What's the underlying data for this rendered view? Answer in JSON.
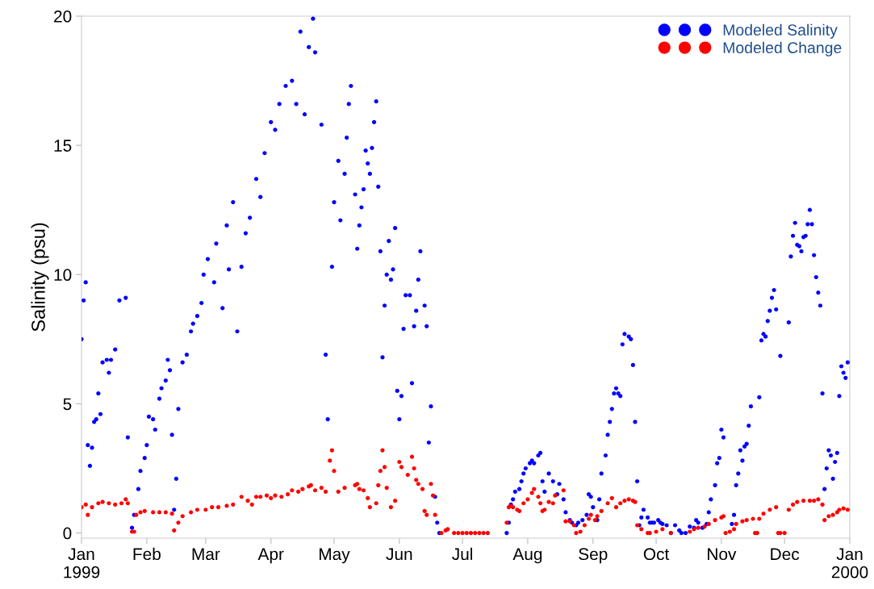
{
  "chart_data": {
    "type": "scatter",
    "ylabel": "Salinity (psu)",
    "xlim": [
      "1999-01-01",
      "2000-01-01"
    ],
    "xticks": [
      {
        "value": "1999-01-01",
        "label": "Jan\n1999"
      },
      {
        "value": "1999-02-01",
        "label": "Feb"
      },
      {
        "value": "1999-03-01",
        "label": "Mar"
      },
      {
        "value": "1999-04-01",
        "label": "Apr"
      },
      {
        "value": "1999-05-01",
        "label": "May"
      },
      {
        "value": "1999-06-01",
        "label": "Jun"
      },
      {
        "value": "1999-07-01",
        "label": "Jul"
      },
      {
        "value": "1999-08-01",
        "label": "Aug"
      },
      {
        "value": "1999-09-01",
        "label": "Sep"
      },
      {
        "value": "1999-10-01",
        "label": "Oct"
      },
      {
        "value": "1999-11-01",
        "label": "Nov"
      },
      {
        "value": "1999-12-01",
        "label": "Dec"
      },
      {
        "value": "2000-01-01",
        "label": "Jan\n2000"
      }
    ],
    "ylim": [
      -0.2,
      20
    ],
    "yticks": [
      0,
      5,
      10,
      15,
      20
    ],
    "grid": false,
    "legend": "top right",
    "marker": "circle",
    "series": [
      {
        "name": "Modeled Salinity",
        "color": "#0000ff",
        "x": [
          "1999-01-01",
          "1999-01-02",
          "1999-01-03",
          "1999-01-04",
          "1999-01-05",
          "1999-01-06",
          "1999-01-07",
          "1999-01-08",
          "1999-01-09",
          "1999-01-10",
          "1999-01-11",
          "1999-01-13",
          "1999-01-14",
          "1999-01-15",
          "1999-01-17",
          "1999-01-19",
          "1999-01-22",
          "1999-01-23",
          "1999-01-25",
          "1999-01-26",
          "1999-01-28",
          "1999-01-29",
          "1999-01-31",
          "1999-02-01",
          "1999-02-02",
          "1999-02-04",
          "1999-02-05",
          "1999-02-07",
          "1999-02-08",
          "1999-02-10",
          "1999-02-11",
          "1999-02-12",
          "1999-02-13",
          "1999-02-14",
          "1999-02-15",
          "1999-02-16",
          "1999-02-18",
          "1999-02-20",
          "1999-02-22",
          "1999-02-23",
          "1999-02-25",
          "1999-02-27",
          "1999-02-28",
          "1999-03-02",
          "1999-03-05",
          "1999-03-06",
          "1999-03-09",
          "1999-03-11",
          "1999-03-12",
          "1999-03-14",
          "1999-03-16",
          "1999-03-18",
          "1999-03-20",
          "1999-03-22",
          "1999-03-25",
          "1999-03-27",
          "1999-03-29",
          "1999-04-01",
          "1999-04-03",
          "1999-04-05",
          "1999-04-08",
          "1999-04-11",
          "1999-04-13",
          "1999-04-15",
          "1999-04-17",
          "1999-04-19",
          "1999-04-21",
          "1999-04-22",
          "1999-04-25",
          "1999-04-27",
          "1999-04-28",
          "1999-04-30",
          "1999-05-01",
          "1999-05-03",
          "1999-05-04",
          "1999-05-06",
          "1999-05-07",
          "1999-05-08",
          "1999-05-09",
          "1999-05-11",
          "1999-05-12",
          "1999-05-13",
          "1999-05-14",
          "1999-05-15",
          "1999-05-16",
          "1999-05-17",
          "1999-05-18",
          "1999-05-19",
          "1999-05-20",
          "1999-05-21",
          "1999-05-22",
          "1999-05-23",
          "1999-05-24",
          "1999-05-25",
          "1999-05-26",
          "1999-05-27",
          "1999-05-28",
          "1999-05-29",
          "1999-05-30",
          "1999-05-31",
          "1999-06-01",
          "1999-06-02",
          "1999-06-03",
          "1999-06-04",
          "1999-06-06",
          "1999-06-07",
          "1999-06-08",
          "1999-06-09",
          "1999-06-10",
          "1999-06-11",
          "1999-06-13",
          "1999-06-14",
          "1999-06-15",
          "1999-06-16",
          "1999-06-18",
          "1999-06-19",
          "1999-06-20",
          "1999-07-22",
          "1999-07-23",
          "1999-07-24",
          "1999-07-25",
          "1999-07-26",
          "1999-07-28",
          "1999-07-29",
          "1999-07-30",
          "1999-07-31",
          "1999-08-02",
          "1999-08-03",
          "1999-08-04",
          "1999-08-06",
          "1999-08-07",
          "1999-08-08",
          "1999-08-09",
          "1999-08-11",
          "1999-08-13",
          "1999-08-15",
          "1999-08-16",
          "1999-08-18",
          "1999-08-19",
          "1999-08-21",
          "1999-08-22",
          "1999-08-24",
          "1999-08-25",
          "1999-08-27",
          "1999-08-29",
          "1999-08-30",
          "1999-08-31",
          "1999-09-01",
          "1999-09-03",
          "1999-09-04",
          "1999-09-05",
          "1999-09-07",
          "1999-09-08",
          "1999-09-09",
          "1999-09-10",
          "1999-09-11",
          "1999-09-12",
          "1999-09-13",
          "1999-09-14",
          "1999-09-15",
          "1999-09-16",
          "1999-09-18",
          "1999-09-19",
          "1999-09-20",
          "1999-09-21",
          "1999-09-22",
          "1999-09-23",
          "1999-09-24",
          "1999-09-25",
          "1999-09-27",
          "1999-09-28",
          "1999-09-29",
          "1999-09-30",
          "1999-10-02",
          "1999-10-03",
          "1999-10-04",
          "1999-10-06",
          "1999-10-08",
          "1999-10-10",
          "1999-10-12",
          "1999-10-13",
          "1999-10-15",
          "1999-10-17",
          "1999-10-19",
          "1999-10-20",
          "1999-10-21",
          "1999-10-23",
          "1999-10-25",
          "1999-10-26",
          "1999-10-27",
          "1999-10-29",
          "1999-10-30",
          "1999-10-31",
          "1999-11-01",
          "1999-11-02",
          "1999-11-06",
          "1999-11-07",
          "1999-11-08",
          "1999-11-09",
          "1999-11-10",
          "1999-11-11",
          "1999-11-12",
          "1999-11-13",
          "1999-11-14",
          "1999-11-15",
          "1999-11-19",
          "1999-11-20",
          "1999-11-21",
          "1999-11-22",
          "1999-11-23",
          "1999-11-24",
          "1999-11-25",
          "1999-11-26",
          "1999-11-27",
          "1999-11-29",
          "1999-12-03",
          "1999-12-04",
          "1999-12-05",
          "1999-12-06",
          "1999-12-07",
          "1999-12-08",
          "1999-12-09",
          "1999-12-10",
          "1999-12-11",
          "1999-12-12",
          "1999-12-13",
          "1999-12-14",
          "1999-12-15",
          "1999-12-16",
          "1999-12-17",
          "1999-12-18",
          "1999-12-19",
          "1999-12-20",
          "1999-12-21",
          "1999-12-22",
          "1999-12-23",
          "1999-12-24",
          "1999-12-25",
          "1999-12-26",
          "1999-12-27",
          "1999-12-28",
          "1999-12-29",
          "1999-12-30",
          "1999-12-31"
        ],
        "values": [
          7.5,
          9.0,
          9.7,
          3.4,
          2.6,
          3.3,
          4.3,
          4.4,
          5.4,
          4.6,
          6.6,
          6.7,
          6.2,
          6.7,
          7.1,
          9.0,
          9.1,
          3.7,
          0.2,
          0.7,
          1.7,
          2.4,
          2.9,
          3.4,
          4.5,
          4.4,
          4.0,
          5.2,
          5.6,
          5.9,
          6.7,
          6.3,
          3.8,
          0.9,
          2.1,
          4.8,
          6.6,
          6.9,
          7.8,
          8.1,
          8.4,
          8.9,
          10.0,
          10.6,
          9.7,
          11.2,
          8.7,
          11.9,
          10.2,
          12.8,
          7.8,
          10.3,
          11.6,
          12.2,
          13.7,
          13.0,
          14.7,
          15.9,
          15.6,
          16.6,
          17.3,
          17.5,
          16.6,
          19.4,
          16.2,
          18.8,
          19.9,
          18.6,
          15.8,
          6.9,
          4.4,
          10.3,
          12.8,
          14.4,
          12.1,
          13.9,
          15.3,
          16.6,
          17.3,
          13.1,
          11.0,
          11.9,
          12.6,
          13.3,
          14.8,
          14.3,
          13.9,
          14.9,
          15.9,
          16.7,
          13.4,
          10.9,
          6.8,
          8.8,
          10.0,
          11.3,
          9.8,
          10.2,
          11.8,
          5.5,
          4.4,
          5.3,
          7.9,
          9.2,
          9.2,
          5.8,
          8.0,
          8.6,
          9.8,
          10.9,
          8.8,
          8.0,
          3.5,
          4.9,
          1.4,
          0.4,
          0.0,
          0.0,
          0.4,
          1.1,
          1.3,
          1.6,
          1.7,
          2.0,
          2.3,
          2.5,
          2.7,
          2.8,
          2.7,
          3.0,
          3.1,
          2.0,
          1.6,
          2.3,
          2.0,
          1.5,
          1.9,
          1.3,
          0.8,
          0.5,
          0.4,
          0.3,
          0.4,
          0.5,
          0.7,
          1.5,
          1.4,
          1.0,
          0.5,
          1.3,
          2.3,
          3.0,
          3.8,
          4.3,
          4.8,
          5.4,
          5.6,
          5.4,
          5.3,
          7.3,
          7.7,
          7.6,
          7.5,
          6.5,
          4.3,
          2.0,
          0.3,
          0.6,
          0.9,
          0.6,
          0.4,
          0.4,
          0.4,
          0.5,
          0.4,
          0.35,
          0.3,
          0.0,
          0.3,
          0.1,
          0.0,
          0.0,
          0.25,
          0.2,
          0.5,
          0.4,
          0.2,
          0.35,
          0.8,
          1.3,
          1.85,
          2.7,
          2.9,
          4.0,
          3.7,
          0.35,
          0.7,
          1.85,
          2.3,
          3.2,
          2.8,
          3.35,
          3.45,
          4.15,
          4.9,
          5.25,
          7.45,
          7.7,
          7.6,
          8.2,
          8.6,
          9.1,
          9.4,
          8.65,
          6.85,
          8.15,
          10.7,
          11.5,
          12.0,
          11.15,
          11.1,
          10.9,
          11.45,
          11.5,
          11.95,
          12.5,
          11.95,
          10.75,
          9.9,
          9.3,
          8.8,
          5.4,
          1.7,
          2.5,
          3.2,
          3.0,
          2.1,
          2.75,
          3.1,
          5.3,
          6.45,
          6.2,
          6.0,
          6.6
        ]
      },
      {
        "name": "Modeled Change",
        "color": "#ff0000",
        "x": [
          "1999-01-01",
          "1999-01-03",
          "1999-01-04",
          "1999-01-06",
          "1999-01-09",
          "1999-01-11",
          "1999-01-14",
          "1999-01-17",
          "1999-01-20",
          "1999-01-22",
          "1999-01-23",
          "1999-01-25",
          "1999-01-26",
          "1999-01-27",
          "1999-01-29",
          "1999-01-31",
          "1999-02-04",
          "1999-02-07",
          "1999-02-10",
          "1999-02-13",
          "1999-02-14",
          "1999-02-16",
          "1999-02-18",
          "1999-02-22",
          "1999-02-25",
          "1999-03-01",
          "1999-03-04",
          "1999-03-07",
          "1999-03-11",
          "1999-03-14",
          "1999-03-18",
          "1999-03-21",
          "1999-03-23",
          "1999-03-25",
          "1999-03-27",
          "1999-03-30",
          "1999-04-01",
          "1999-04-03",
          "1999-04-06",
          "1999-04-09",
          "1999-04-11",
          "1999-04-14",
          "1999-04-16",
          "1999-04-19",
          "1999-04-20",
          "1999-04-22",
          "1999-04-25",
          "1999-04-27",
          "1999-04-29",
          "1999-04-30",
          "1999-05-01",
          "1999-05-03",
          "1999-05-06",
          "1999-05-11",
          "1999-05-12",
          "1999-05-13",
          "1999-05-15",
          "1999-05-17",
          "1999-05-18",
          "1999-05-21",
          "1999-05-22",
          "1999-05-23",
          "1999-05-24",
          "1999-05-25",
          "1999-05-26",
          "1999-05-28",
          "1999-05-30",
          "1999-06-01",
          "1999-06-02",
          "1999-06-05",
          "1999-06-07",
          "1999-06-08",
          "1999-06-09",
          "1999-06-10",
          "1999-06-12",
          "1999-06-13",
          "1999-06-14",
          "1999-06-16",
          "1999-06-17",
          "1999-06-18",
          "1999-06-21",
          "1999-06-23",
          "1999-06-24",
          "1999-06-27",
          "1999-06-29",
          "1999-07-01",
          "1999-07-03",
          "1999-07-05",
          "1999-07-07",
          "1999-07-09",
          "1999-07-11",
          "1999-07-13",
          "1999-07-22",
          "1999-07-23",
          "1999-07-24",
          "1999-07-25",
          "1999-07-27",
          "1999-07-28",
          "1999-07-30",
          "1999-08-01",
          "1999-08-03",
          "1999-08-04",
          "1999-08-06",
          "1999-08-07",
          "1999-08-08",
          "1999-08-09",
          "1999-08-11",
          "1999-08-13",
          "1999-08-14",
          "1999-08-18",
          "1999-08-19",
          "1999-08-21",
          "1999-08-23",
          "1999-08-24",
          "1999-08-26",
          "1999-08-28",
          "1999-08-30",
          "1999-08-31",
          "1999-09-02",
          "1999-09-03",
          "1999-09-05",
          "1999-09-08",
          "1999-09-10",
          "1999-09-12",
          "1999-09-14",
          "1999-09-16",
          "1999-09-18",
          "1999-09-20",
          "1999-09-21",
          "1999-09-22",
          "1999-09-24",
          "1999-09-27",
          "1999-09-28",
          "1999-10-01",
          "1999-10-04",
          "1999-10-08",
          "1999-10-17",
          "1999-10-19",
          "1999-10-21",
          "1999-10-24",
          "1999-10-26",
          "1999-10-29",
          "1999-11-01",
          "1999-11-02",
          "1999-11-03",
          "1999-11-05",
          "1999-11-07",
          "1999-11-08",
          "1999-11-11",
          "1999-11-13",
          "1999-11-16",
          "1999-11-17",
          "1999-11-18",
          "1999-11-19",
          "1999-11-21",
          "1999-11-24",
          "1999-11-27",
          "1999-11-28",
          "1999-11-29",
          "1999-12-01",
          "1999-12-03",
          "1999-12-05",
          "1999-12-07",
          "1999-12-10",
          "1999-12-13",
          "1999-12-15",
          "1999-12-17",
          "1999-12-19",
          "1999-12-20",
          "1999-12-22",
          "1999-12-24",
          "1999-12-26",
          "1999-12-27",
          "1999-12-29",
          "1999-12-31"
        ],
        "values": [
          1.0,
          1.1,
          0.7,
          1.0,
          1.15,
          1.2,
          1.15,
          1.1,
          1.15,
          1.3,
          1.15,
          0.05,
          0.05,
          0.7,
          0.8,
          0.85,
          0.8,
          0.8,
          0.8,
          0.75,
          0.1,
          0.4,
          0.65,
          0.8,
          0.9,
          0.9,
          1.0,
          1.0,
          1.05,
          1.1,
          1.4,
          1.25,
          1.1,
          1.4,
          1.4,
          1.45,
          1.35,
          1.45,
          1.4,
          1.5,
          1.65,
          1.6,
          1.7,
          1.8,
          1.85,
          1.65,
          1.75,
          1.6,
          2.8,
          3.2,
          2.4,
          1.6,
          1.75,
          1.85,
          1.9,
          1.7,
          1.65,
          1.35,
          1.0,
          1.15,
          1.85,
          2.4,
          3.2,
          2.55,
          1.75,
          1.0,
          1.25,
          2.75,
          2.55,
          2.25,
          2.95,
          2.5,
          2.05,
          1.9,
          1.7,
          0.85,
          0.7,
          1.9,
          1.45,
          0.7,
          0.0,
          0.1,
          0.15,
          0.0,
          0.0,
          0.0,
          0.0,
          0.0,
          0.0,
          0.0,
          0.0,
          0.0,
          0.4,
          1.0,
          1.05,
          1.0,
          0.9,
          0.85,
          1.15,
          1.3,
          1.55,
          1.7,
          1.4,
          1.15,
          0.85,
          0.9,
          1.2,
          1.15,
          1.45,
          1.65,
          0.45,
          0.45,
          0.3,
          0.0,
          0.05,
          0.3,
          0.55,
          0.7,
          0.5,
          0.65,
          0.85,
          1.15,
          1.35,
          1.0,
          1.15,
          1.25,
          1.3,
          1.25,
          1.2,
          0.3,
          0.15,
          0.0,
          0.0,
          0.05,
          0.15,
          0.0,
          0.05,
          0.15,
          0.2,
          0.25,
          0.35,
          0.5,
          0.6,
          0.65,
          0.0,
          0.05,
          0.15,
          0.35,
          0.45,
          0.5,
          0.55,
          0.0,
          0.0,
          0.55,
          0.75,
          0.9,
          1.0,
          0.0,
          0.0,
          0.0,
          0.9,
          1.1,
          1.2,
          1.25,
          1.25,
          1.25,
          1.3,
          1.1,
          0.5,
          0.65,
          0.7,
          0.8,
          0.9,
          0.95,
          0.9
        ]
      }
    ]
  }
}
